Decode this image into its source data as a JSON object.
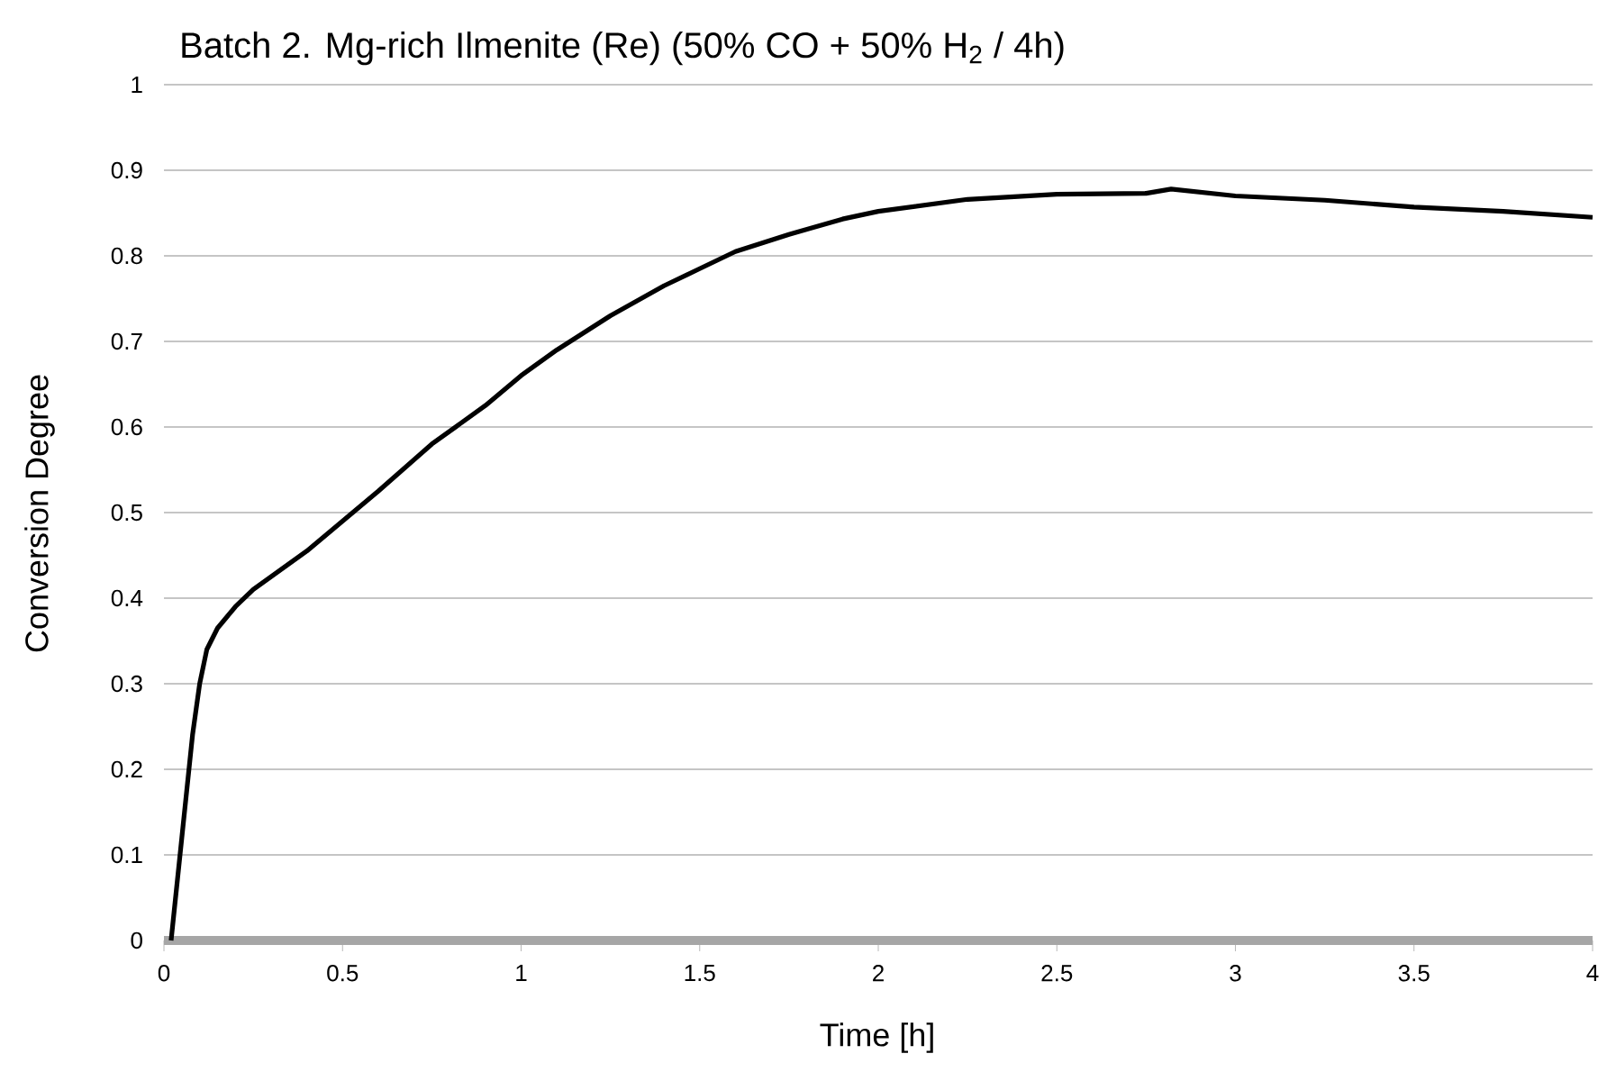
{
  "chart_data": {
    "type": "line",
    "title": "Batch 2. Mg-rich Ilmenite (Re) (50% CO + 50% H$_{2}$ / 4h)",
    "xlabel": "Time [h]",
    "ylabel": "Conversion Degree",
    "x": [
      0.02,
      0.05,
      0.08,
      0.1,
      0.12,
      0.15,
      0.2,
      0.25,
      0.3,
      0.4,
      0.5,
      0.6,
      0.75,
      0.9,
      1.0,
      1.1,
      1.25,
      1.4,
      1.5,
      1.6,
      1.75,
      1.9,
      2.0,
      2.25,
      2.5,
      2.75,
      2.82,
      3.0,
      3.25,
      3.5,
      3.75,
      4.0
    ],
    "series": [
      {
        "color": "#000000",
        "values": [
          0.0,
          0.12,
          0.24,
          0.3,
          0.34,
          0.365,
          0.39,
          0.41,
          0.425,
          0.455,
          0.49,
          0.525,
          0.58,
          0.625,
          0.66,
          0.69,
          0.73,
          0.765,
          0.785,
          0.805,
          0.825,
          0.843,
          0.852,
          0.866,
          0.872,
          0.873,
          0.878,
          0.87,
          0.865,
          0.857,
          0.852,
          0.845
        ]
      }
    ],
    "xlim": [
      0,
      4
    ],
    "ylim": [
      0,
      1
    ],
    "xticks": [
      0,
      0.5,
      1,
      1.5,
      2,
      2.5,
      3,
      3.5,
      4
    ],
    "yticks": [
      0,
      0.1,
      0.2,
      0.3,
      0.4,
      0.5,
      0.6,
      0.7,
      0.8,
      0.9,
      1
    ],
    "grid": "y",
    "marker": "none",
    "line_style": "solid"
  }
}
